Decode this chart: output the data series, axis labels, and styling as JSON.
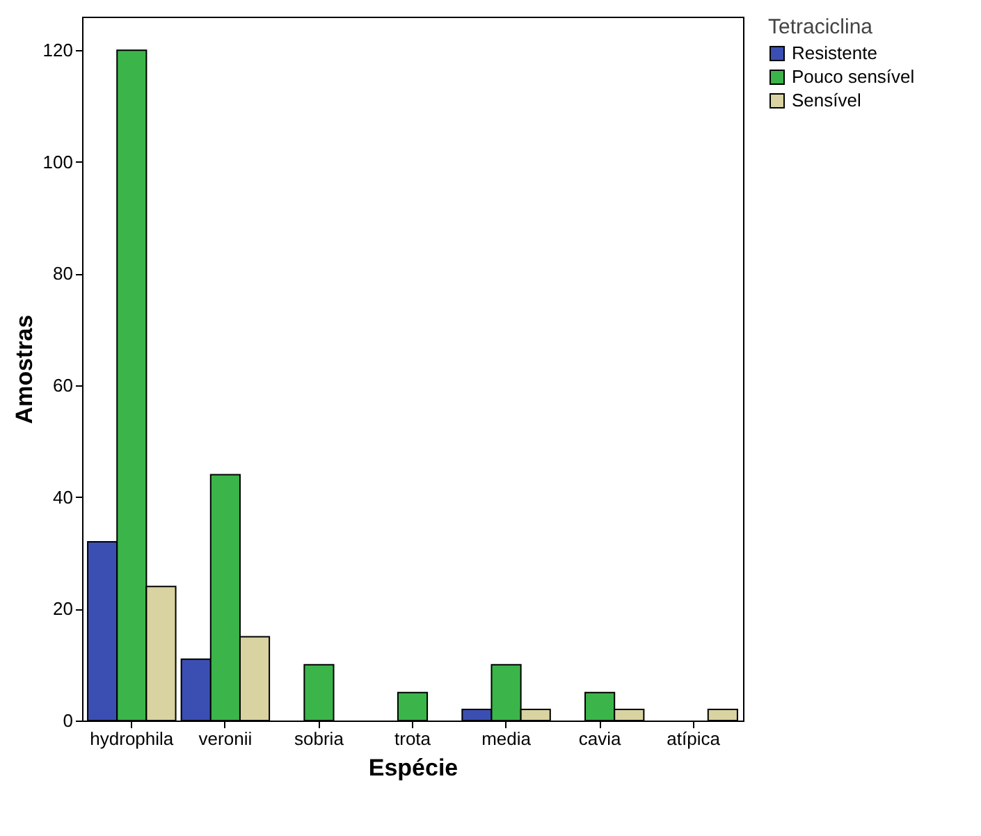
{
  "chart_data": {
    "type": "bar",
    "xlabel": "Espécie",
    "ylabel": "Amostras",
    "legend_title": "Tetraciclina",
    "legend": "top right",
    "categories": [
      "hydrophila",
      "veronii",
      "sobria",
      "trota",
      "media",
      "cavia",
      "atípica"
    ],
    "series": [
      {
        "name": "Resistente",
        "color": "#3b4fb3",
        "values": [
          32,
          11,
          null,
          null,
          2,
          null,
          null
        ]
      },
      {
        "name": "Pouco sensível",
        "color": "#3bb54a",
        "values": [
          120,
          44,
          10,
          5,
          10,
          5,
          null
        ]
      },
      {
        "name": "Sensível",
        "color": "#d8d3a0",
        "values": [
          24,
          15,
          null,
          null,
          2,
          2,
          2
        ]
      }
    ],
    "ylim": [
      0,
      126
    ],
    "yticks": [
      0,
      20,
      40,
      60,
      80,
      100,
      120
    ],
    "grid": false
  }
}
